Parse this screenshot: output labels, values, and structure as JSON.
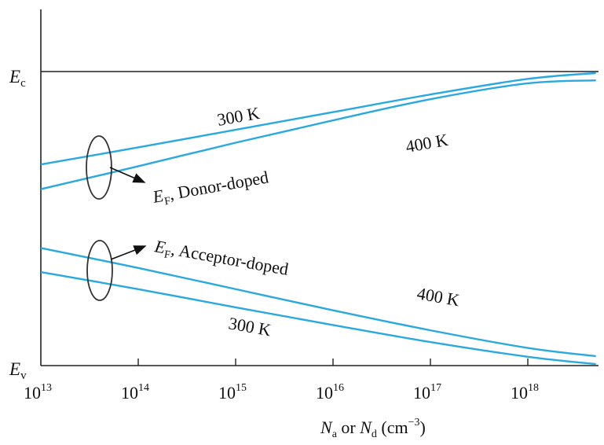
{
  "chart_data": {
    "type": "line",
    "title": "",
    "x_scale": "log",
    "xlim": [
      10000000000000.0,
      5e+18
    ],
    "x_ticks": [
      10000000000000.0,
      100000000000000.0,
      1000000000000000.0,
      1e+16,
      1e+17,
      1e+18
    ],
    "x_tick_labels": [
      {
        "base": "10",
        "exp": "13"
      },
      {
        "base": "10",
        "exp": "14"
      },
      {
        "base": "10",
        "exp": "15"
      },
      {
        "base": "10",
        "exp": "16"
      },
      {
        "base": "10",
        "exp": "17"
      },
      {
        "base": "10",
        "exp": "18"
      }
    ],
    "xlabel": {
      "pre": "N",
      "sub1": "a",
      "mid": " or ",
      "pre2": "N",
      "sub2": "d",
      "unit_open": " (cm",
      "unit_exp": "−3",
      "unit_close": ")"
    },
    "ylabel": "",
    "y_levels": {
      "Ec": {
        "main": "E",
        "sub": "c",
        "value": 1.0
      },
      "Ev": {
        "main": "E",
        "sub": "v",
        "value": 0.0
      }
    },
    "ylim": [
      0,
      1.2
    ],
    "grid": false,
    "series": [
      {
        "name": "300 K",
        "group": "donor",
        "color": "#29a9e0",
        "x": [
          10000000000000.0,
          100000000000000.0,
          1000000000000000.0,
          1e+16,
          1e+17,
          1e+18,
          5e+18
        ],
        "y": [
          0.684,
          0.742,
          0.802,
          0.862,
          0.922,
          0.975,
          0.995
        ]
      },
      {
        "name": "400 K",
        "group": "donor",
        "color": "#29a9e0",
        "x": [
          10000000000000.0,
          100000000000000.0,
          1000000000000000.0,
          1e+16,
          1e+17,
          1e+18,
          5e+18
        ],
        "y": [
          0.6,
          0.678,
          0.758,
          0.834,
          0.906,
          0.96,
          0.97
        ]
      },
      {
        "name": "400 K",
        "group": "acceptor",
        "color": "#29a9e0",
        "x": [
          10000000000000.0,
          100000000000000.0,
          1000000000000000.0,
          1e+16,
          1e+17,
          1e+18,
          5e+18
        ],
        "y": [
          0.4,
          0.332,
          0.26,
          0.188,
          0.12,
          0.06,
          0.032
        ]
      },
      {
        "name": "300 K",
        "group": "acceptor",
        "color": "#29a9e0",
        "x": [
          10000000000000.0,
          100000000000000.0,
          1000000000000000.0,
          1e+16,
          1e+17,
          1e+18,
          5e+18
        ],
        "y": [
          0.318,
          0.26,
          0.198,
          0.138,
          0.08,
          0.03,
          0.005
        ]
      }
    ],
    "annotations": [
      {
        "id": "donor",
        "main": "E",
        "sub": "F",
        "text": ", Donor-doped"
      },
      {
        "id": "acceptor",
        "main": "E",
        "sub": "F",
        "text": ", Acceptor-doped"
      }
    ],
    "temp_labels": [
      {
        "text": "300 K",
        "series": 0
      },
      {
        "text": "400 K",
        "series": 1
      },
      {
        "text": "400 K",
        "series": 2
      },
      {
        "text": "300 K",
        "series": 3
      }
    ]
  }
}
